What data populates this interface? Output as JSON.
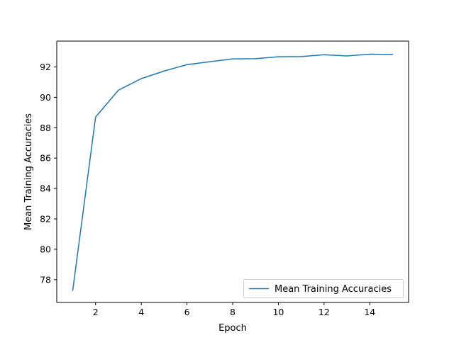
{
  "chart_data": {
    "type": "line",
    "xlabel": "Epoch",
    "ylabel": "Mean Training Accuracies",
    "xlim": [
      0.3,
      15.7
    ],
    "ylim": [
      76.5,
      93.7
    ],
    "xticks": [
      2,
      4,
      6,
      8,
      10,
      12,
      14
    ],
    "yticks": [
      78,
      80,
      82,
      84,
      86,
      88,
      90,
      92
    ],
    "grid": false,
    "legend_position": "lower-right",
    "series": [
      {
        "name": "Mean Training Accuracies",
        "color": "#1f77b4",
        "x": [
          1,
          2,
          3,
          4,
          5,
          6,
          7,
          8,
          9,
          10,
          11,
          12,
          13,
          14,
          15
        ],
        "y": [
          77.3,
          88.7,
          90.47,
          91.23,
          91.73,
          92.15,
          92.34,
          92.53,
          92.54,
          92.67,
          92.68,
          92.8,
          92.72,
          92.84,
          92.82
        ]
      }
    ]
  }
}
